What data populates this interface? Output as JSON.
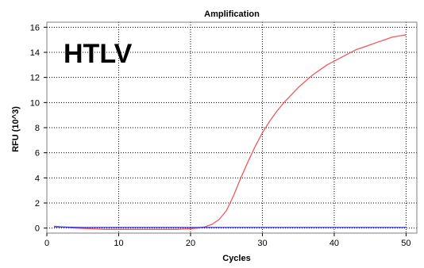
{
  "chart_data": {
    "type": "line",
    "title": "Amplification",
    "xlabel": "Cycles",
    "ylabel": "RFU (10^3)",
    "annotation": "HTLV",
    "xlim": [
      0,
      51.5
    ],
    "ylim": [
      -0.4,
      16.4
    ],
    "x_ticks": [
      0,
      10,
      20,
      30,
      40,
      50
    ],
    "y_ticks": [
      0,
      2,
      4,
      6,
      8,
      10,
      12,
      14,
      16
    ],
    "grid": true,
    "legend": "none",
    "series": [
      {
        "color": "#f0595d",
        "x": [
          1,
          2,
          4,
          6,
          8,
          10,
          12,
          14,
          16,
          18,
          20,
          21,
          22,
          23,
          24,
          25,
          26,
          27,
          28,
          29,
          30,
          31,
          32,
          33,
          34,
          35,
          36,
          37,
          38,
          39,
          40,
          41,
          42,
          43,
          44,
          45,
          46,
          47,
          48,
          49,
          50
        ],
        "y": [
          0.15,
          0.1,
          0.0,
          -0.05,
          -0.1,
          -0.1,
          -0.1,
          -0.1,
          -0.1,
          -0.1,
          -0.05,
          0.0,
          0.1,
          0.3,
          0.7,
          1.4,
          2.6,
          4.0,
          5.3,
          6.5,
          7.6,
          8.5,
          9.3,
          10.0,
          10.6,
          11.2,
          11.7,
          12.2,
          12.6,
          13.0,
          13.3,
          13.6,
          13.9,
          14.2,
          14.4,
          14.6,
          14.8,
          15.0,
          15.2,
          15.3,
          15.4
        ]
      },
      {
        "color": "#3333cc",
        "x": [
          1,
          5,
          10,
          15,
          20,
          25,
          30,
          35,
          40,
          45,
          50
        ],
        "y": [
          0.1,
          0.05,
          0.05,
          0.05,
          0.05,
          0.05,
          0.05,
          0.05,
          0.05,
          0.05,
          0.05
        ]
      }
    ]
  }
}
